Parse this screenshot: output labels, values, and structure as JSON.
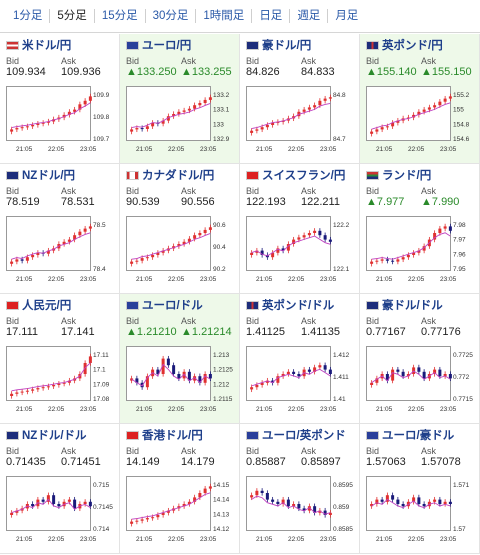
{
  "tabs": [
    "1分足",
    "5分足",
    "15分足",
    "30分足",
    "1時間足",
    "日足",
    "週足",
    "月足"
  ],
  "active_tab": 1,
  "labels": {
    "bid": "Bid",
    "ask": "Ask"
  },
  "colors": {
    "up": "#e03030",
    "down": "#1a1a7a",
    "ma": "#c040c0",
    "highlight": "#eef9e9",
    "up_text": "#2a8a2a"
  },
  "x_ticks": [
    "21:05",
    "22:05",
    "23:05"
  ],
  "pairs": [
    {
      "name": "米ドル/円",
      "flag": "us",
      "bid": "109.934",
      "ask": "109.936",
      "up": false,
      "hl": false,
      "yticks": [
        "109.9",
        "109.8",
        "109.7"
      ],
      "trend": [
        0.15,
        0.18,
        0.2,
        0.22,
        0.25,
        0.28,
        0.3,
        0.33,
        0.38,
        0.42,
        0.48,
        0.55,
        0.6,
        0.72,
        0.8,
        0.9
      ]
    },
    {
      "name": "ユーロ/円",
      "flag": "eu",
      "bid": "133.250",
      "ask": "133.255",
      "up": true,
      "hl": true,
      "yticks": [
        "133.2",
        "133.1",
        "133",
        "132.9"
      ],
      "trend": [
        0.15,
        0.18,
        0.16,
        0.22,
        0.3,
        0.28,
        0.35,
        0.45,
        0.5,
        0.55,
        0.58,
        0.62,
        0.7,
        0.75,
        0.82,
        0.88
      ]
    },
    {
      "name": "豪ドル/円",
      "flag": "au",
      "bid": "84.826",
      "ask": "84.833",
      "up": false,
      "hl": false,
      "yticks": [
        "84.8",
        "84.7"
      ],
      "trend": [
        0.12,
        0.15,
        0.2,
        0.25,
        0.3,
        0.32,
        0.35,
        0.4,
        0.45,
        0.55,
        0.6,
        0.65,
        0.7,
        0.8,
        0.85,
        0.88
      ]
    },
    {
      "name": "英ポンド/円",
      "flag": "uk",
      "bid": "155.140",
      "ask": "155.150",
      "up": true,
      "hl": true,
      "yticks": [
        "155.2",
        "155",
        "154.8",
        "154.6"
      ],
      "trend": [
        0.1,
        0.15,
        0.2,
        0.22,
        0.3,
        0.35,
        0.4,
        0.42,
        0.48,
        0.55,
        0.6,
        0.65,
        0.7,
        0.78,
        0.85,
        0.9
      ]
    },
    {
      "name": "NZドル/円",
      "flag": "nz",
      "bid": "78.519",
      "ask": "78.531",
      "up": false,
      "hl": false,
      "yticks": [
        "78.5",
        "78.4"
      ],
      "trend": [
        0.1,
        0.15,
        0.12,
        0.2,
        0.25,
        0.3,
        0.28,
        0.35,
        0.4,
        0.5,
        0.55,
        0.6,
        0.7,
        0.78,
        0.85,
        0.9
      ]
    },
    {
      "name": "カナダドル/円",
      "flag": "ca",
      "bid": "90.539",
      "ask": "90.556",
      "up": false,
      "hl": false,
      "yticks": [
        "90.6",
        "90.4",
        "90.2"
      ],
      "trend": [
        0.1,
        0.12,
        0.18,
        0.2,
        0.25,
        0.3,
        0.35,
        0.4,
        0.45,
        0.5,
        0.55,
        0.62,
        0.7,
        0.75,
        0.82,
        0.88
      ]
    },
    {
      "name": "スイスフラン/円",
      "flag": "ch",
      "bid": "122.193",
      "ask": "122.211",
      "up": false,
      "hl": false,
      "yticks": [
        "122.2",
        "122.1"
      ],
      "trend": [
        0.3,
        0.35,
        0.25,
        0.2,
        0.3,
        0.4,
        0.35,
        0.5,
        0.6,
        0.65,
        0.7,
        0.75,
        0.8,
        0.7,
        0.6,
        0.55
      ]
    },
    {
      "name": "ランド/円",
      "flag": "za",
      "bid": "7.977",
      "ask": "7.990",
      "up": true,
      "hl": false,
      "yticks": [
        "7.98",
        "7.97",
        "7.96",
        "7.95"
      ],
      "trend": [
        0.1,
        0.12,
        0.15,
        0.12,
        0.1,
        0.15,
        0.2,
        0.25,
        0.3,
        0.35,
        0.45,
        0.6,
        0.75,
        0.85,
        0.9,
        0.8
      ]
    },
    {
      "name": "人民元/円",
      "flag": "cn",
      "bid": "17.111",
      "ask": "17.141",
      "up": false,
      "hl": false,
      "yticks": [
        "17.11",
        "17.1",
        "17.09",
        "17.08"
      ],
      "trend": [
        0.05,
        0.08,
        0.1,
        0.12,
        0.15,
        0.18,
        0.2,
        0.22,
        0.25,
        0.28,
        0.3,
        0.35,
        0.4,
        0.5,
        0.75,
        0.9
      ]
    },
    {
      "name": "ユーロ/ドル",
      "flag": "eu",
      "bid": "1.21210",
      "ask": "1.21214",
      "up": true,
      "hl": true,
      "yticks": [
        "1.213",
        "1.2125",
        "1.212",
        "1.2115"
      ],
      "trend": [
        0.4,
        0.3,
        0.2,
        0.45,
        0.6,
        0.5,
        0.85,
        0.7,
        0.5,
        0.4,
        0.55,
        0.35,
        0.45,
        0.3,
        0.5,
        0.4
      ]
    },
    {
      "name": "英ポンド/ドル",
      "flag": "uk",
      "bid": "1.41125",
      "ask": "1.41135",
      "up": false,
      "hl": false,
      "yticks": [
        "1.412",
        "1.411",
        "1.41"
      ],
      "trend": [
        0.2,
        0.25,
        0.3,
        0.35,
        0.3,
        0.45,
        0.5,
        0.55,
        0.5,
        0.45,
        0.6,
        0.55,
        0.65,
        0.7,
        0.6,
        0.5
      ]
    },
    {
      "name": "豪ドル/ドル",
      "flag": "au",
      "bid": "0.77167",
      "ask": "0.77176",
      "up": false,
      "hl": false,
      "yticks": [
        "0.7725",
        "0.772",
        "0.7715"
      ],
      "trend": [
        0.3,
        0.4,
        0.5,
        0.35,
        0.6,
        0.55,
        0.45,
        0.5,
        0.65,
        0.55,
        0.4,
        0.5,
        0.6,
        0.45,
        0.5,
        0.4
      ]
    },
    {
      "name": "NZドル/ドル",
      "flag": "nz",
      "bid": "0.71435",
      "ask": "0.71451",
      "up": false,
      "hl": false,
      "yticks": [
        "0.715",
        "0.7145",
        "0.714"
      ],
      "trend": [
        0.3,
        0.35,
        0.4,
        0.5,
        0.45,
        0.6,
        0.55,
        0.7,
        0.5,
        0.45,
        0.55,
        0.6,
        0.4,
        0.5,
        0.55,
        0.45
      ]
    },
    {
      "name": "香港ドル/円",
      "flag": "hk",
      "bid": "14.149",
      "ask": "14.179",
      "up": false,
      "hl": false,
      "yticks": [
        "14.15",
        "14.14",
        "14.13",
        "14.12"
      ],
      "trend": [
        0.1,
        0.12,
        0.15,
        0.18,
        0.2,
        0.25,
        0.3,
        0.35,
        0.4,
        0.45,
        0.5,
        0.55,
        0.65,
        0.75,
        0.85,
        0.9
      ]
    },
    {
      "name": "ユーロ/英ポンド",
      "flag": "eu",
      "bid": "0.85887",
      "ask": "0.85897",
      "up": false,
      "hl": false,
      "yticks": [
        "0.8595",
        "0.859",
        "0.8585"
      ],
      "trend": [
        0.7,
        0.8,
        0.75,
        0.6,
        0.55,
        0.5,
        0.6,
        0.45,
        0.5,
        0.4,
        0.35,
        0.45,
        0.3,
        0.35,
        0.25,
        0.3
      ]
    },
    {
      "name": "ユーロ/豪ドル",
      "flag": "eu",
      "bid": "1.57063",
      "ask": "1.57078",
      "up": false,
      "hl": false,
      "yticks": [
        "1.571",
        "1.57"
      ],
      "trend": [
        0.5,
        0.6,
        0.55,
        0.7,
        0.6,
        0.5,
        0.45,
        0.55,
        0.65,
        0.5,
        0.45,
        0.55,
        0.6,
        0.5,
        0.55,
        0.5
      ]
    }
  ]
}
